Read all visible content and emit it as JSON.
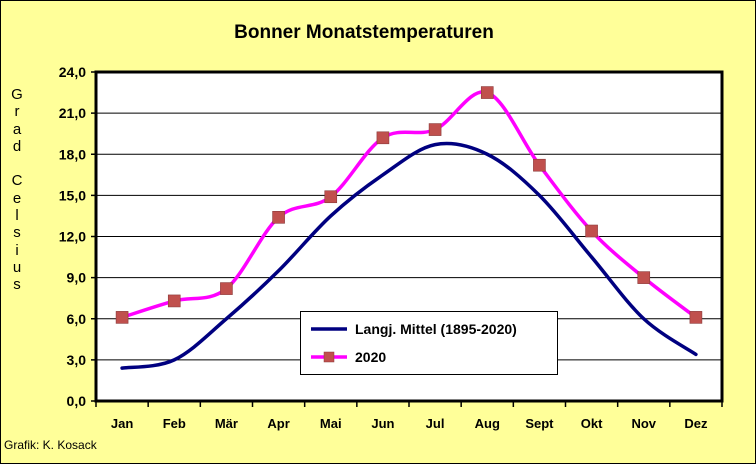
{
  "chart_data": {
    "type": "line",
    "title": "Bonner Monatstemperaturen",
    "ylabel": "Grad Celsius",
    "xlabel": "",
    "categories": [
      "Jan",
      "Feb",
      "Mär",
      "Apr",
      "Mai",
      "Jun",
      "Jul",
      "Aug",
      "Sept",
      "Okt",
      "Nov",
      "Dez"
    ],
    "ylim": [
      0,
      24
    ],
    "yticks": [
      "0,0",
      "3,0",
      "6,0",
      "9,0",
      "12,0",
      "15,0",
      "18,0",
      "21,0",
      "24,0"
    ],
    "grid": "horizontal",
    "legend_position": "bottom-center",
    "series": [
      {
        "name": "Langj. Mittel (1895-2020)",
        "color": "#000080",
        "marker": "none",
        "values": [
          2.4,
          3.0,
          6.0,
          9.5,
          13.5,
          16.5,
          18.7,
          18.0,
          15.0,
          10.5,
          6.0,
          3.4
        ]
      },
      {
        "name": "2020",
        "color": "#FF00FF",
        "marker": "square",
        "marker_color": "#C0504D",
        "values": [
          6.1,
          7.3,
          8.2,
          13.4,
          14.9,
          19.2,
          19.8,
          22.5,
          17.2,
          12.4,
          9.0,
          6.1
        ]
      }
    ]
  },
  "ylabel_text": "Grad Celsius",
  "credit": "Grafik:  K. Kosack",
  "colors": {
    "background": "#FFFF99",
    "plot_area": "#FFFFFF"
  }
}
